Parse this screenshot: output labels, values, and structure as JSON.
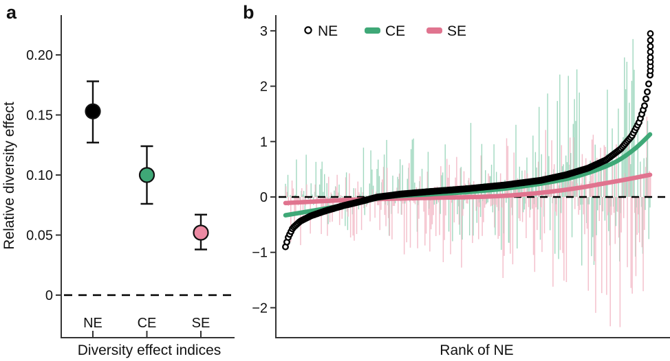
{
  "figure": {
    "panel_a_letter": "a",
    "panel_b_letter": "b"
  },
  "chart_data": [
    {
      "id": "panel_a",
      "type": "scatter",
      "xlabel": "Diversity effect indices",
      "ylabel": "Relative diversity effect",
      "categories": [
        "NE",
        "CE",
        "SE"
      ],
      "y_ticks": [
        "0.20",
        "0.15",
        "0.10",
        "0.05",
        "0"
      ],
      "y_tick_values": [
        0.2,
        0.15,
        0.1,
        0.05,
        0
      ],
      "ylim": [
        -0.035,
        0.233
      ],
      "zero_line_dashed": true,
      "points": [
        {
          "label": "NE",
          "value": 0.153,
          "ci_low": 0.127,
          "ci_high": 0.178,
          "fill": "#000000"
        },
        {
          "label": "CE",
          "value": 0.1,
          "ci_low": 0.076,
          "ci_high": 0.124,
          "fill": "#3fa877"
        },
        {
          "label": "SE",
          "value": 0.052,
          "ci_low": 0.038,
          "ci_high": 0.067,
          "fill": "#ec8aa3"
        }
      ]
    },
    {
      "id": "panel_b",
      "type": "line",
      "xlabel": "Rank of NE",
      "y_ticks": [
        "3",
        "2",
        "1",
        "0",
        "−1",
        "−2"
      ],
      "y_tick_values": [
        3,
        2,
        1,
        0,
        -1,
        -2
      ],
      "ylim": [
        -2.55,
        3.3
      ],
      "zero_line_dashed": true,
      "legend": [
        {
          "label": "NE",
          "marker": "open-circle",
          "color": "#000000"
        },
        {
          "label": "CE",
          "marker": "swatch",
          "color": "#3fa877"
        },
        {
          "label": "SE",
          "marker": "swatch",
          "color": "#e0748f"
        }
      ],
      "colors": {
        "ne": "#000000",
        "ce_trend": "#3fa877",
        "se_trend": "#e0748f",
        "ce_spike": "#a0d8bf",
        "se_spike": "#f4c0cc"
      },
      "ne_rank_curve": [
        [
          0.0,
          -0.9
        ],
        [
          0.008,
          -0.72
        ],
        [
          0.02,
          -0.56
        ],
        [
          0.04,
          -0.44
        ],
        [
          0.07,
          -0.34
        ],
        [
          0.11,
          -0.25
        ],
        [
          0.16,
          -0.155
        ],
        [
          0.21,
          -0.075
        ],
        [
          0.253,
          0.0
        ],
        [
          0.32,
          0.055
        ],
        [
          0.4,
          0.1
        ],
        [
          0.5,
          0.15
        ],
        [
          0.6,
          0.215
        ],
        [
          0.7,
          0.3
        ],
        [
          0.77,
          0.4
        ],
        [
          0.83,
          0.52
        ],
        [
          0.88,
          0.67
        ],
        [
          0.92,
          0.87
        ],
        [
          0.95,
          1.1
        ],
        [
          0.97,
          1.35
        ],
        [
          0.985,
          1.65
        ],
        [
          0.994,
          1.95
        ],
        [
          1.0,
          2.2
        ]
      ],
      "ne_top_outliers": [
        2.28,
        2.36,
        2.44,
        2.52,
        2.62,
        2.72,
        2.83,
        2.95
      ],
      "ce_trend_curve": [
        [
          0.0,
          -0.33
        ],
        [
          0.1,
          -0.22
        ],
        [
          0.2,
          -0.1
        ],
        [
          0.28,
          0.0
        ],
        [
          0.4,
          0.05
        ],
        [
          0.5,
          0.09
        ],
        [
          0.6,
          0.15
        ],
        [
          0.7,
          0.24
        ],
        [
          0.78,
          0.34
        ],
        [
          0.85,
          0.48
        ],
        [
          0.91,
          0.65
        ],
        [
          0.96,
          0.88
        ],
        [
          1.0,
          1.13
        ]
      ],
      "se_trend_curve": [
        [
          0.0,
          -0.11
        ],
        [
          0.15,
          -0.06
        ],
        [
          0.3,
          -0.03
        ],
        [
          0.45,
          -0.01
        ],
        [
          0.52,
          0.0
        ],
        [
          0.62,
          0.03
        ],
        [
          0.72,
          0.09
        ],
        [
          0.8,
          0.16
        ],
        [
          0.87,
          0.24
        ],
        [
          0.93,
          0.31
        ],
        [
          1.0,
          0.4
        ]
      ],
      "spikes": {
        "count": 300,
        "seed": 42,
        "ce": {
          "p_up": 0.6,
          "up_env": [
            0.95,
            2.15
          ],
          "down_env": [
            0.55,
            0.95
          ],
          "clamp": [
            -1.6,
            3.0
          ]
        },
        "se": {
          "p_up": 0.44,
          "up_env": [
            0.55,
            0.85
          ],
          "down_env": [
            1.05,
            1.0
          ],
          "clamp": [
            -2.35,
            1.45
          ]
        }
      },
      "ne_point_count": 265
    }
  ]
}
